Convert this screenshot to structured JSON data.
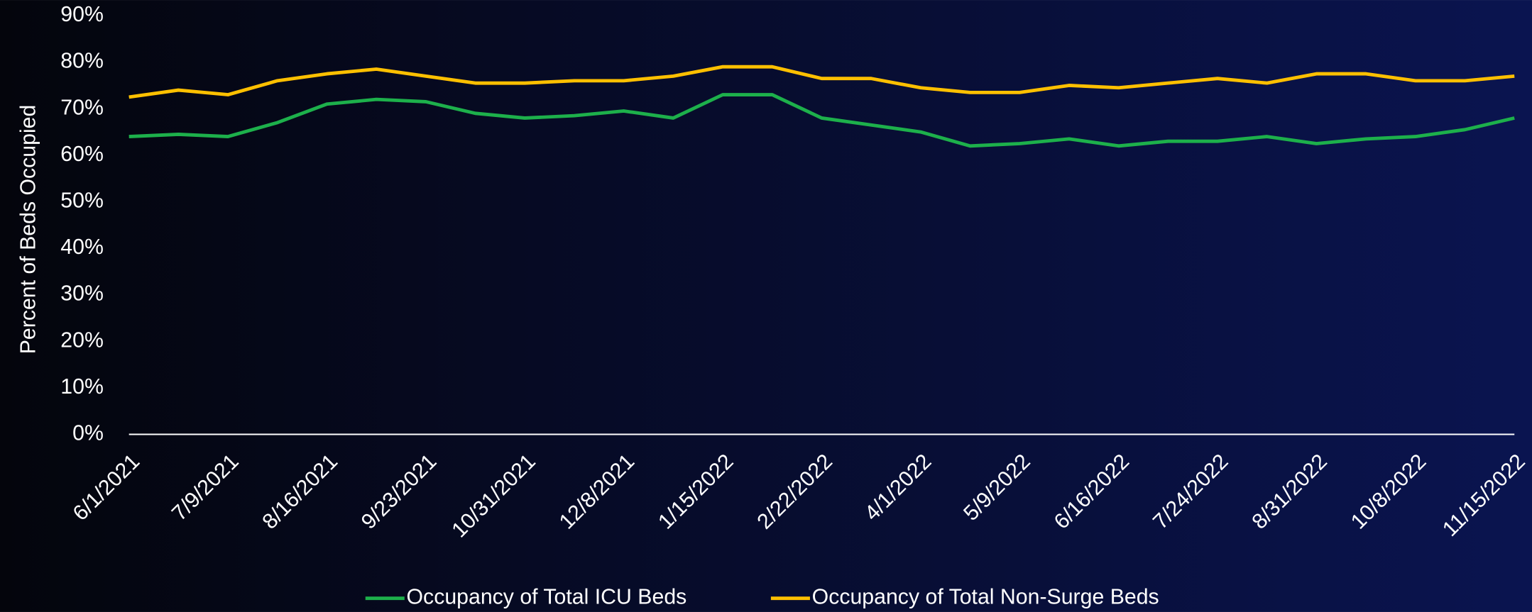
{
  "chart_data": {
    "type": "line",
    "y_label": "Percent of Beds Occupied",
    "x": [
      "6/1/2021",
      "6/20/2021",
      "7/9/2021",
      "7/28/2021",
      "8/16/2021",
      "9/4/2021",
      "9/23/2021",
      "10/12/2021",
      "10/31/2021",
      "11/19/2021",
      "12/8/2021",
      "12/27/2021",
      "1/15/2022",
      "2/3/2022",
      "2/22/2022",
      "3/13/2022",
      "4/1/2022",
      "4/20/2022",
      "5/9/2022",
      "5/28/2022",
      "6/16/2022",
      "7/5/2022",
      "7/24/2022",
      "8/12/2022",
      "8/31/2022",
      "9/19/2022",
      "10/8/2022",
      "10/27/2022",
      "11/15/2022"
    ],
    "series": [
      {
        "name": "Occupancy of Total ICU Beds",
        "color": "#1db04b",
        "values": [
          64,
          64.5,
          64,
          67,
          71,
          72,
          71.5,
          69,
          68,
          68.5,
          69.5,
          68,
          73,
          73,
          68,
          66.5,
          65,
          62,
          62.5,
          63.5,
          62,
          63,
          63,
          64,
          62.5,
          63.5,
          64,
          65.5,
          68
        ]
      },
      {
        "name": "Occupancy of Total Non-Surge Beds",
        "color": "#ffc000",
        "values": [
          72.5,
          74,
          73,
          76,
          77.5,
          78.5,
          77,
          75.5,
          75.5,
          76,
          76,
          77,
          79,
          79,
          76.5,
          76.5,
          74.5,
          73.5,
          73.5,
          75,
          74.5,
          75.5,
          76.5,
          75.5,
          77.5,
          77.5,
          76,
          76,
          77
        ]
      }
    ],
    "xlim": [
      "6/1/2021",
      "11/15/2022"
    ],
    "xticks": [
      "6/1/2021",
      "7/9/2021",
      "8/16/2021",
      "9/23/2021",
      "10/31/2021",
      "12/8/2021",
      "1/15/2022",
      "2/22/2022",
      "4/1/2022",
      "5/9/2022",
      "6/16/2022",
      "7/24/2022",
      "8/31/2022",
      "10/8/2022",
      "11/15/2022"
    ],
    "ylim": [
      0,
      90
    ],
    "yticks": [
      {
        "value": 0,
        "label": "0%"
      },
      {
        "value": 10,
        "label": "10%"
      },
      {
        "value": 20,
        "label": "20%"
      },
      {
        "value": 30,
        "label": "30%"
      },
      {
        "value": 40,
        "label": "40%"
      },
      {
        "value": 50,
        "label": "50%"
      },
      {
        "value": 60,
        "label": "60%"
      },
      {
        "value": 70,
        "label": "70%"
      },
      {
        "value": 80,
        "label": "80%"
      },
      {
        "value": 90,
        "label": "90%"
      }
    ],
    "legend": "bottom"
  }
}
